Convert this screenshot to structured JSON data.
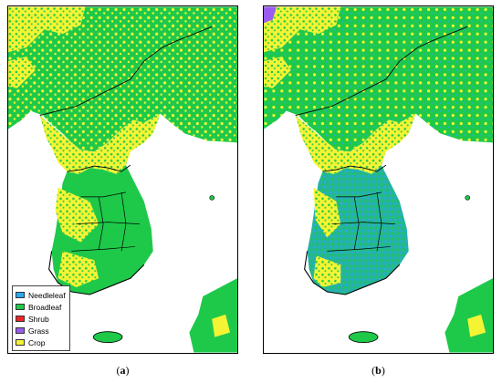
{
  "colors": {
    "needleleaf": "#2aa8f0",
    "broadleaf": "#1ec94a",
    "shrub": "#f02424",
    "grass": "#9a5cf0",
    "crop": "#f4f434",
    "boundary": "#000000",
    "water": "#ffffff"
  },
  "legend": {
    "items": [
      {
        "label": "Needleleaf",
        "color": "#2aa8f0"
      },
      {
        "label": "Broadleaf",
        "color": "#1ec94a"
      },
      {
        "label": "Shrub",
        "color": "#f02424"
      },
      {
        "label": "Grass",
        "color": "#9a5cf0"
      },
      {
        "label": "Crop",
        "color": "#f4f434"
      }
    ]
  },
  "captions": {
    "a": "a",
    "b": "b"
  }
}
